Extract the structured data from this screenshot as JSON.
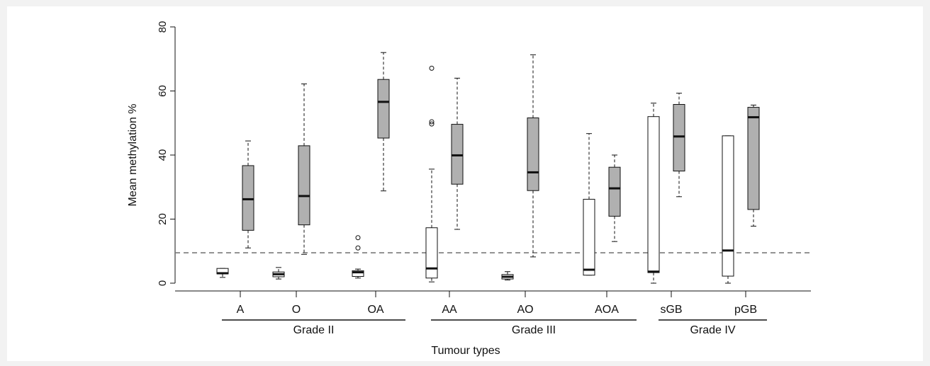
{
  "chart_data": {
    "type": "box",
    "ylabel": "Mean methylation %",
    "xlabel": "Tumour types",
    "ylim": [
      0,
      80
    ],
    "yticks": [
      0,
      20,
      40,
      60,
      80
    ],
    "threshold": 9.5,
    "colors": {
      "unmethylated": "#ffffff",
      "methylated": "#b0b0b0",
      "line": "#111111",
      "threshold": "#7a7a7a"
    },
    "categories": [
      "A",
      "O",
      "OA",
      "AA",
      "AO",
      "AOA",
      "sGB",
      "pGB"
    ],
    "groups": [
      {
        "label": "Grade II",
        "categories": [
          "A",
          "O",
          "OA"
        ]
      },
      {
        "label": "Grade III",
        "categories": [
          "AA",
          "AO",
          "AOA"
        ]
      },
      {
        "label": "Grade IV",
        "categories": [
          "sGB",
          "pGB"
        ]
      }
    ],
    "boxes": [
      {
        "category": "A",
        "fill": "white",
        "whisker_low": 1.8,
        "q1": 2.9,
        "median": 3.1,
        "q3": 4.6,
        "whisker_high": 4.6,
        "outliers": []
      },
      {
        "category": "A",
        "fill": "gray",
        "whisker_low": 11,
        "q1": 16.5,
        "median": 26.2,
        "q3": 36.7,
        "whisker_high": 44.4,
        "outliers": []
      },
      {
        "category": "O",
        "fill": "white",
        "whisker_low": 1.3,
        "q1": 2,
        "median": 2.8,
        "q3": 3.5,
        "whisker_high": 4.9,
        "outliers": []
      },
      {
        "category": "O",
        "fill": "gray",
        "whisker_low": 9,
        "q1": 18.2,
        "median": 27.2,
        "q3": 42.9,
        "whisker_high": 62.2,
        "outliers": []
      },
      {
        "category": "OA",
        "fill": "white",
        "whisker_low": 1.6,
        "q1": 2.1,
        "median": 3.4,
        "q3": 3.9,
        "whisker_high": 4.4,
        "outliers": [
          11,
          14.2
        ]
      },
      {
        "category": "OA",
        "fill": "gray",
        "whisker_low": 28.8,
        "q1": 45.3,
        "median": 56.6,
        "q3": 63.6,
        "whisker_high": 72,
        "outliers": []
      },
      {
        "category": "AA",
        "fill": "white",
        "whisker_low": 0.4,
        "q1": 1.6,
        "median": 4.6,
        "q3": 17.3,
        "whisker_high": 35.6,
        "outliers": [
          49.7,
          50.4,
          67.1
        ]
      },
      {
        "category": "AA",
        "fill": "gray",
        "whisker_low": 16.8,
        "q1": 30.9,
        "median": 39.9,
        "q3": 49.6,
        "whisker_high": 64,
        "outliers": []
      },
      {
        "category": "AO",
        "fill": "white",
        "whisker_low": 1,
        "q1": 1.3,
        "median": 2,
        "q3": 2.7,
        "whisker_high": 3.6,
        "outliers": []
      },
      {
        "category": "AO",
        "fill": "gray",
        "whisker_low": 8.2,
        "q1": 28.9,
        "median": 34.6,
        "q3": 51.6,
        "whisker_high": 71.3,
        "outliers": []
      },
      {
        "category": "AOA",
        "fill": "white",
        "whisker_low": 2.5,
        "q1": 2.5,
        "median": 4.2,
        "q3": 26.2,
        "whisker_high": 46.7,
        "outliers": []
      },
      {
        "category": "AOA",
        "fill": "gray",
        "whisker_low": 13,
        "q1": 20.9,
        "median": 29.6,
        "q3": 36.2,
        "whisker_high": 40,
        "outliers": []
      },
      {
        "category": "sGB",
        "fill": "white",
        "whisker_low": 0,
        "q1": 3.3,
        "median": 3.6,
        "q3": 52,
        "whisker_high": 56.2,
        "outliers": []
      },
      {
        "category": "sGB",
        "fill": "gray",
        "whisker_low": 27,
        "q1": 35,
        "median": 45.8,
        "q3": 55.8,
        "whisker_high": 59.3,
        "outliers": []
      },
      {
        "category": "pGB",
        "fill": "white",
        "whisker_low": 0,
        "q1": 2.2,
        "median": 10.2,
        "q3": 46,
        "whisker_high": 46,
        "outliers": []
      },
      {
        "category": "pGB",
        "fill": "gray",
        "whisker_low": 17.8,
        "q1": 23,
        "median": 51.8,
        "q3": 54.9,
        "whisker_high": 55.6,
        "outliers": []
      }
    ]
  }
}
